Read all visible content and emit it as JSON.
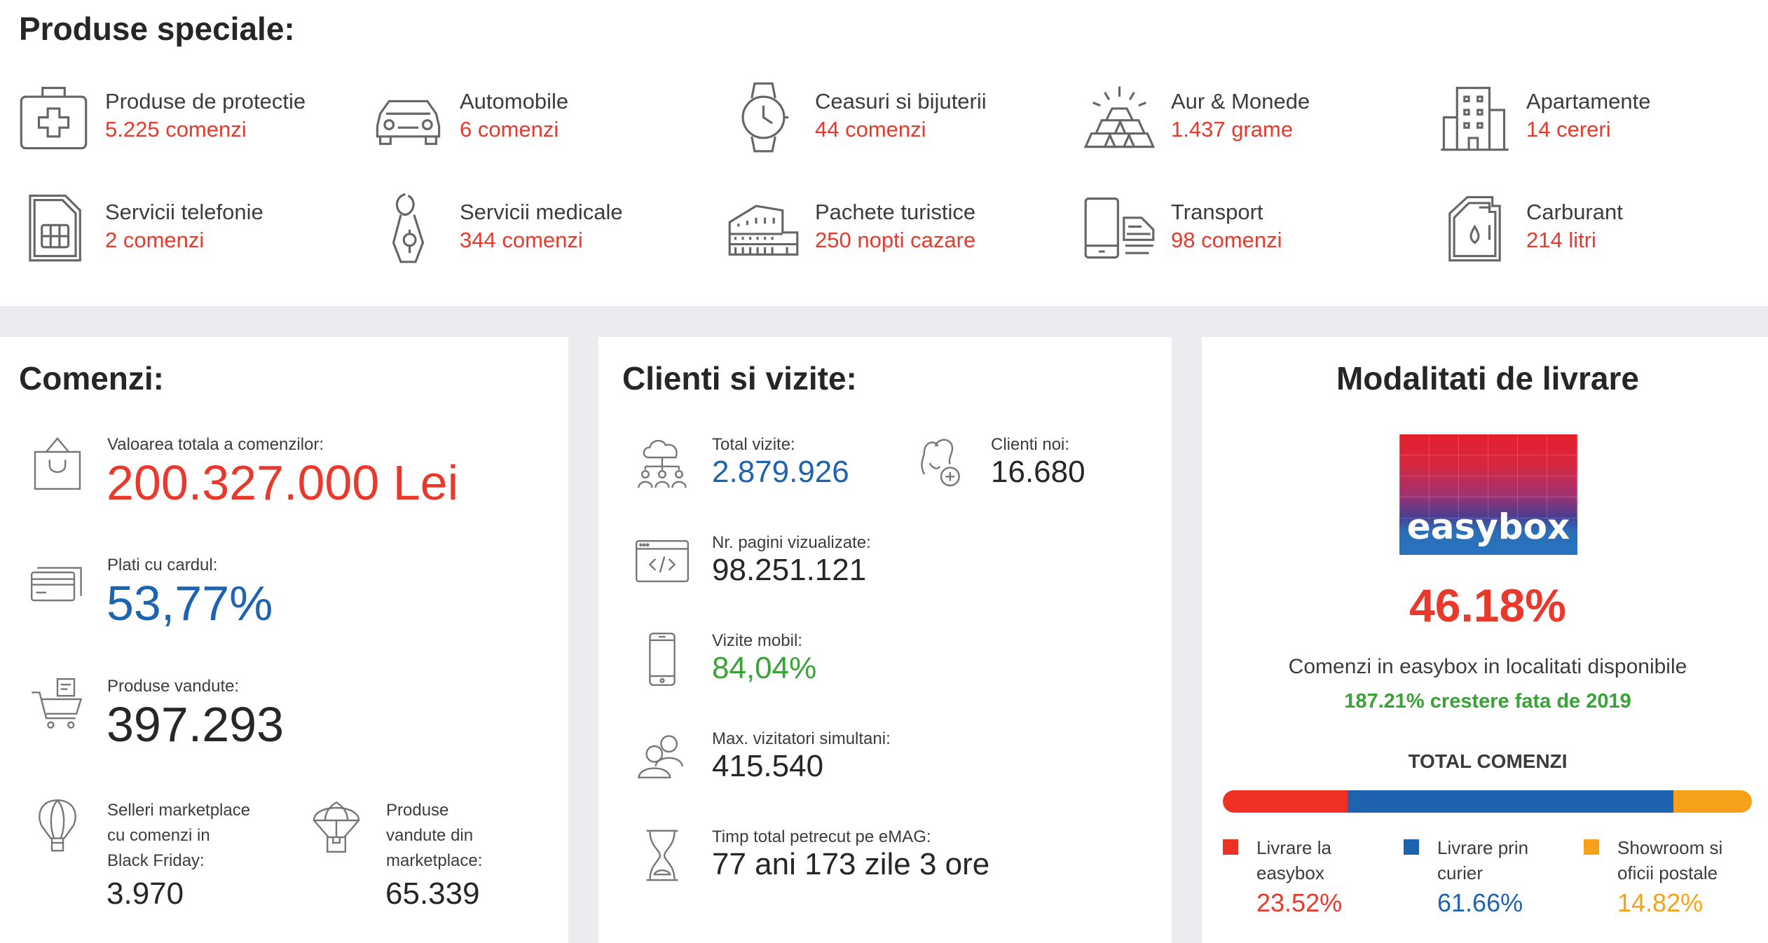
{
  "special": {
    "title": "Produse speciale:",
    "items": [
      {
        "name": "Produse de protectie",
        "value": "5.225 comenzi",
        "icon": "first-aid-kit-icon"
      },
      {
        "name": "Automobile",
        "value": "6 comenzi",
        "icon": "car-icon"
      },
      {
        "name": "Ceasuri si bijuterii",
        "value": "44 comenzi",
        "icon": "watch-icon"
      },
      {
        "name": "Aur & Monede",
        "value": "1.437 grame",
        "icon": "gold-bars-icon"
      },
      {
        "name": "Apartamente",
        "value": "14 cereri",
        "icon": "building-icon"
      },
      {
        "name": "Servicii telefonie",
        "value": "2 comenzi",
        "icon": "sim-card-icon"
      },
      {
        "name": "Servicii medicale",
        "value": "344 comenzi",
        "icon": "medical-icon"
      },
      {
        "name": "Pachete turistice",
        "value": "250 nopti cazare",
        "icon": "colosseum-icon"
      },
      {
        "name": "Transport",
        "value": "98 comenzi",
        "icon": "transport-icon"
      },
      {
        "name": "Carburant",
        "value": "214 litri",
        "icon": "fuel-can-icon"
      }
    ]
  },
  "orders": {
    "title": "Comenzi:",
    "total_label": "Valoarea totala a comenzilor:",
    "total_value": "200.327.000 Lei",
    "card_label": "Plati cu cardul:",
    "card_value": "53,77%",
    "sold_label": "Produse vandute:",
    "sold_value": "397.293",
    "sellers_label": [
      "Selleri marketplace",
      "cu comenzi in",
      "Black Friday:"
    ],
    "sellers_value": "3.970",
    "mp_label": [
      "Produse",
      "vandute din",
      "marketplace:"
    ],
    "mp_value": "65.339"
  },
  "clients": {
    "title": "Clienti si vizite:",
    "visits_label": "Total vizite:",
    "visits_value": "2.879.926",
    "new_label": "Clienti noi:",
    "new_value": "16.680",
    "pages_label": "Nr. pagini vizualizate:",
    "pages_value": "98.251.121",
    "mobile_label": "Vizite mobil:",
    "mobile_value": "84,04%",
    "max_label": "Max. vizitatori simultani:",
    "max_value": "415.540",
    "time_label": "Timp total petrecut pe eMAG:",
    "time_value": "77 ani 173 zile 3 ore"
  },
  "delivery": {
    "title": "Modalitati de livrare",
    "logo_text": "easybox",
    "percent": "46.18%",
    "desc": "Comenzi in easybox in localitati disponibile",
    "growth": "187.21% crestere fata de 2019",
    "total_label": "TOTAL COMENZI",
    "segments": [
      {
        "label": [
          "Livrare la",
          "easybox"
        ],
        "percent": "23.52%",
        "fraction": 0.2352,
        "color": "#ee3124"
      },
      {
        "label": [
          "Livrare prin",
          "curier"
        ],
        "percent": "61.66%",
        "fraction": 0.6166,
        "color": "#1e63b0"
      },
      {
        "label": [
          "Showroom si",
          "oficii postale"
        ],
        "percent": "14.82%",
        "fraction": 0.1482,
        "color": "#f7a11a"
      }
    ]
  }
}
